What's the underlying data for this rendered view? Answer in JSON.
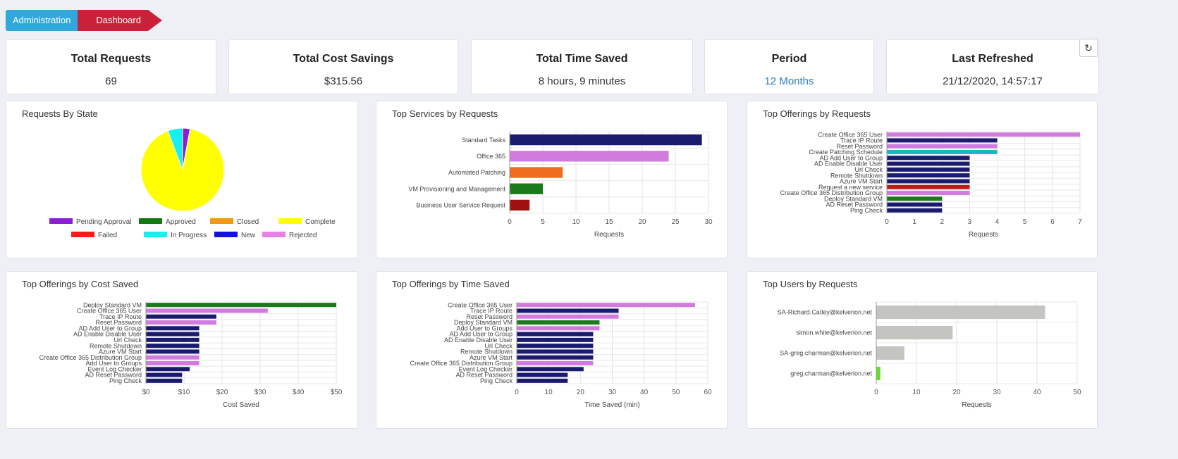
{
  "breadcrumb": {
    "items": [
      "Administration",
      "Dashboard"
    ]
  },
  "stats": {
    "total_requests": {
      "label": "Total Requests",
      "value": "69"
    },
    "total_cost_savings": {
      "label": "Total Cost Savings",
      "value": "$315.56"
    },
    "total_time_saved": {
      "label": "Total Time Saved",
      "value": "8 hours, 9 minutes"
    },
    "period": {
      "label": "Period",
      "value": "12 Months"
    },
    "last_refreshed": {
      "label": "Last Refreshed",
      "value": "21/12/2020, 14:57:17"
    }
  },
  "icons": {
    "refresh": "refresh-icon"
  },
  "panels": {
    "requests_by_state": "Requests By State",
    "top_services_requests": "Top Services by Requests",
    "top_offerings_requests": "Top Offerings by Requests",
    "top_offerings_cost": "Top Offerings by Cost Saved",
    "top_offerings_time": "Top Offerings by Time Saved",
    "top_users_requests": "Top Users by Requests"
  },
  "colors": {
    "navy": "#1a1a6e",
    "violet": "#d17bdf",
    "orange": "#ef6c1c",
    "green": "#1b7a1b",
    "darkred": "#a11010",
    "teal": "#19b7c4",
    "red": "#c01818",
    "gray": "#c4c4c0",
    "lime": "#66dd22"
  },
  "chart_data": [
    {
      "id": "requests_by_state",
      "type": "pie",
      "title": "Requests By State",
      "categories": [
        "Pending Approval",
        "Approved",
        "Closed",
        "Complete",
        "Failed",
        "In Progress",
        "New",
        "Rejected"
      ],
      "colors": [
        "#8b1fd8",
        "#127a12",
        "#f29a0e",
        "#ffff00",
        "#ff1a1a",
        "#18f0ef",
        "#1414d8",
        "#e880e8"
      ],
      "values": [
        2,
        0,
        0,
        63,
        0,
        4,
        0,
        0
      ],
      "legend": "bottom"
    },
    {
      "id": "top_services_requests",
      "type": "bar",
      "orientation": "horizontal",
      "title": "Top Services by Requests",
      "categories": [
        "Standard Tasks",
        "Office 365",
        "Automated Patching",
        "VM Provisioning and Management",
        "Business User Service Request"
      ],
      "values": [
        29,
        24,
        8,
        5,
        3
      ],
      "colors": [
        "#1a1a6e",
        "#d17bdf",
        "#ef6c1c",
        "#1b7a1b",
        "#a11010"
      ],
      "xlabel": "Requests",
      "xlim": [
        0,
        30
      ],
      "ticks": [
        "0",
        "5",
        "10",
        "15",
        "20",
        "25",
        "30"
      ],
      "grid": true
    },
    {
      "id": "top_offerings_requests",
      "type": "bar",
      "orientation": "horizontal",
      "title": "Top Offerings by Requests",
      "categories": [
        "Create Office 365 User",
        "Trace IP Route",
        "Reset Password",
        "Create Patching Schedule",
        "AD Add User to Group",
        "AD Enable Disable User",
        "Url Check",
        "Remote Shutdown",
        "Azure VM Start",
        "Request a new service",
        "Create Office 365 Distribution Group",
        "Deploy Standard VM",
        "AD Reset Password",
        "Ping Check"
      ],
      "values": [
        7,
        4,
        4,
        4,
        3,
        3,
        3,
        3,
        3,
        3,
        3,
        2,
        2,
        2
      ],
      "colors": [
        "#d17bdf",
        "#1a1a6e",
        "#d17bdf",
        "#19b7c4",
        "#1a1a6e",
        "#1a1a6e",
        "#1a1a6e",
        "#1a1a6e",
        "#1a1a6e",
        "#c01818",
        "#d17bdf",
        "#1b7a1b",
        "#1a1a6e",
        "#1a1a6e"
      ],
      "xlabel": "Requests",
      "xlim": [
        0,
        7
      ],
      "ticks": [
        "0",
        "1",
        "2",
        "3",
        "4",
        "5",
        "6",
        "7"
      ],
      "grid": true
    },
    {
      "id": "top_offerings_cost",
      "type": "bar",
      "orientation": "horizontal",
      "title": "Top Offerings by Cost Saved",
      "categories": [
        "Deploy Standard VM",
        "Create Office 365 User",
        "Trace IP Route",
        "Reset Password",
        "AD Add User to Group",
        "AD Enable Disable User",
        "Url Check",
        "Remote Shutdown",
        "Azure VM Start",
        "Create Office 365 Distribution Group",
        "Add User to Groups",
        "Event Log Checker",
        "AD Reset Password",
        "Ping Check"
      ],
      "values": [
        50,
        32,
        18.5,
        18.5,
        14,
        14,
        14,
        14,
        14,
        14,
        14,
        11.5,
        9.5,
        9.5
      ],
      "colors": [
        "#1b7a1b",
        "#d17bdf",
        "#1a1a6e",
        "#d17bdf",
        "#1a1a6e",
        "#1a1a6e",
        "#1a1a6e",
        "#1a1a6e",
        "#1a1a6e",
        "#d17bdf",
        "#d17bdf",
        "#1a1a6e",
        "#1a1a6e",
        "#1a1a6e"
      ],
      "xlabel": "Cost Saved",
      "xlim": [
        0,
        50
      ],
      "ticks": [
        "$0",
        "$10",
        "$20",
        "$30",
        "$40",
        "$50"
      ],
      "grid": true
    },
    {
      "id": "top_offerings_time",
      "type": "bar",
      "orientation": "horizontal",
      "title": "Top Offerings by Time Saved",
      "categories": [
        "Create Office 365 User",
        "Trace IP Route",
        "Reset Password",
        "Deploy Standard VM",
        "Add User to Groups",
        "AD Add User to Group",
        "AD Enable Disable User",
        "Url Check",
        "Remote Shutdown",
        "Azure VM Start",
        "Create Office 365 Distribution Group",
        "Event Log Checker",
        "AD Reset Password",
        "Ping Check"
      ],
      "values": [
        56,
        32,
        32,
        26,
        26,
        24,
        24,
        24,
        24,
        24,
        24,
        21,
        16,
        16
      ],
      "colors": [
        "#d17bdf",
        "#1a1a6e",
        "#d17bdf",
        "#1b7a1b",
        "#d17bdf",
        "#1a1a6e",
        "#1a1a6e",
        "#1a1a6e",
        "#1a1a6e",
        "#1a1a6e",
        "#d17bdf",
        "#1a1a6e",
        "#1a1a6e",
        "#1a1a6e"
      ],
      "xlabel": "Time Saved (min)",
      "xlim": [
        0,
        60
      ],
      "ticks": [
        "0",
        "10",
        "20",
        "30",
        "40",
        "50",
        "60"
      ],
      "grid": true
    },
    {
      "id": "top_users_requests",
      "type": "bar",
      "orientation": "horizontal",
      "title": "Top Users by Requests",
      "categories": [
        "SA-Richard.Catley@kelverion.net",
        "simon.white@kelverion.net",
        "SA-greg.charman@kelverion.net",
        "greg.charman@kelverion.net"
      ],
      "values": [
        42,
        19,
        7,
        1
      ],
      "colors": [
        "#c4c4c0",
        "#c4c4c0",
        "#c4c4c0",
        "#66dd22"
      ],
      "xlabel": "Requests",
      "xlim": [
        0,
        50
      ],
      "ticks": [
        "0",
        "10",
        "20",
        "30",
        "40",
        "50"
      ],
      "grid": true
    }
  ]
}
